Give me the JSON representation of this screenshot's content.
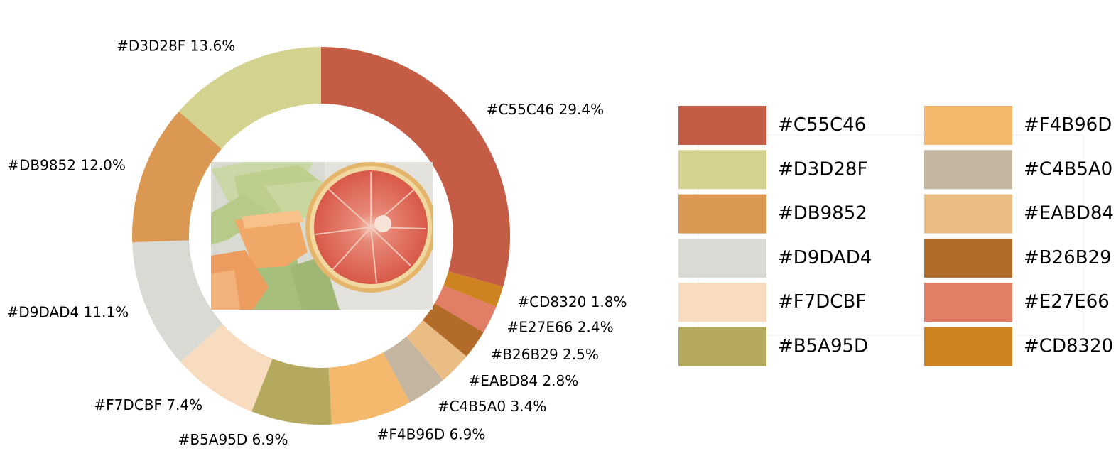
{
  "chart_data": {
    "type": "pie",
    "style": "donut",
    "center_image": "fruit photo: sliced honeydew and cantaloupe melon with a halved pink grapefruit",
    "slices": [
      {
        "label": "#C55C46",
        "percent_text": "29.4%",
        "value": 29.4,
        "color": "#C55C46"
      },
      {
        "label": "#CD8320",
        "percent_text": "1.8%",
        "value": 1.8,
        "color": "#CD8320"
      },
      {
        "label": "#E27E66",
        "percent_text": "2.4%",
        "value": 2.4,
        "color": "#E27E66"
      },
      {
        "label": "#B26B29",
        "percent_text": "2.5%",
        "value": 2.5,
        "color": "#B26B29"
      },
      {
        "label": "#EABD84",
        "percent_text": "2.8%",
        "value": 2.8,
        "color": "#EABD84"
      },
      {
        "label": "#C4B5A0",
        "percent_text": "3.4%",
        "value": 3.4,
        "color": "#C4B5A0"
      },
      {
        "label": "#F4B96D",
        "percent_text": "6.9%",
        "value": 6.9,
        "color": "#F4B96D"
      },
      {
        "label": "#B5A95D",
        "percent_text": "6.9%",
        "value": 6.9,
        "color": "#B5A95D"
      },
      {
        "label": "#F7DCBF",
        "percent_text": "7.4%",
        "value": 7.4,
        "color": "#F7DCBF"
      },
      {
        "label": "#D9DAD4",
        "percent_text": "11.1%",
        "value": 11.1,
        "color": "#D9DAD4"
      },
      {
        "label": "#DB9852",
        "percent_text": "12.0%",
        "value": 12.0,
        "color": "#DB9852"
      },
      {
        "label": "#D3D28F",
        "percent_text": "13.6%",
        "value": 13.6,
        "color": "#D3D28F"
      }
    ],
    "legend": {
      "placement": "right",
      "columns": 2,
      "entries": [
        {
          "label": "#C55C46",
          "color": "#C55C46"
        },
        {
          "label": "#D3D28F",
          "color": "#D3D28F"
        },
        {
          "label": "#DB9852",
          "color": "#DB9852"
        },
        {
          "label": "#D9DAD4",
          "color": "#D9DAD4"
        },
        {
          "label": "#F7DCBF",
          "color": "#F7DCBF"
        },
        {
          "label": "#B5A95D",
          "color": "#B5A95D"
        },
        {
          "label": "#F4B96D",
          "color": "#F4B96D"
        },
        {
          "label": "#C4B5A0",
          "color": "#C4B5A0"
        },
        {
          "label": "#EABD84",
          "color": "#EABD84"
        },
        {
          "label": "#B26B29",
          "color": "#B26B29"
        },
        {
          "label": "#E27E66",
          "color": "#E27E66"
        },
        {
          "label": "#CD8320",
          "color": "#CD8320"
        }
      ]
    }
  }
}
